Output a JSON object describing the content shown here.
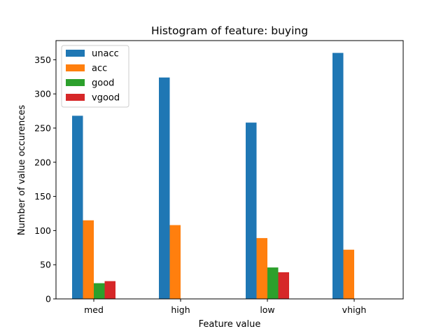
{
  "chart_data": {
    "type": "bar",
    "title": "Histogram of feature: buying",
    "xlabel": "Feature value",
    "ylabel": "Number of value occurences",
    "categories": [
      "med",
      "high",
      "low",
      "vhigh"
    ],
    "series": [
      {
        "name": "unacc",
        "color": "#1f77b4",
        "values": [
          268,
          324,
          258,
          360
        ]
      },
      {
        "name": "acc",
        "color": "#ff7f0e",
        "values": [
          115,
          108,
          89,
          72
        ]
      },
      {
        "name": "good",
        "color": "#2ca02c",
        "values": [
          23,
          0,
          46,
          0
        ]
      },
      {
        "name": "vgood",
        "color": "#d62728",
        "values": [
          26,
          0,
          39,
          0
        ]
      }
    ],
    "ylim": [
      0,
      378
    ],
    "yticks": [
      0,
      50,
      100,
      150,
      200,
      250,
      300,
      350
    ],
    "grid": false,
    "legend_position": "top-left"
  }
}
